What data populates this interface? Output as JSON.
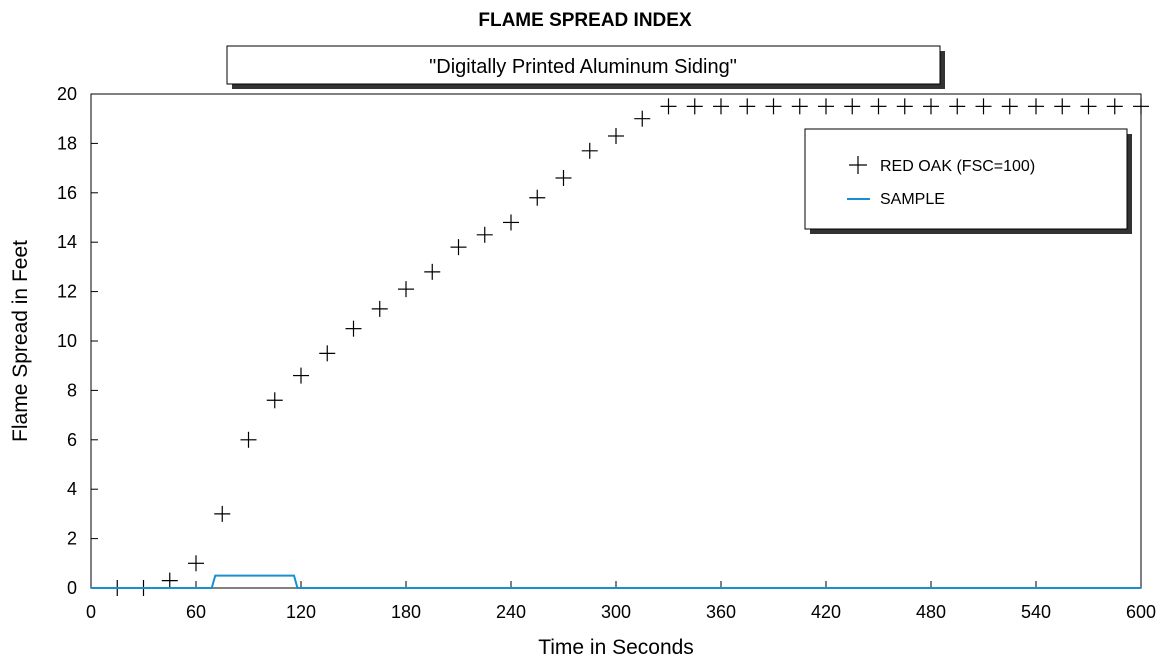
{
  "chart_data": {
    "type": "scatter",
    "title": "FLAME SPREAD INDEX",
    "subtitle": "\"Digitally Printed Aluminum Siding\"",
    "xlabel": "Time in Seconds",
    "ylabel": "Flame Spread in Feet",
    "xlim": [
      0,
      600
    ],
    "ylim": [
      0,
      20
    ],
    "xticks": [
      "0",
      "60",
      "120",
      "180",
      "240",
      "300",
      "360",
      "420",
      "480",
      "540",
      "600"
    ],
    "yticks": [
      "0",
      "2",
      "4",
      "6",
      "8",
      "10",
      "12",
      "14",
      "16",
      "18",
      "20"
    ],
    "grid": false,
    "legend_position": "top-right",
    "series": [
      {
        "name": "RED OAK (FSC=100)",
        "marker": "plus",
        "color": "#000000",
        "x": [
          15,
          30,
          45,
          60,
          75,
          90,
          105,
          120,
          135,
          150,
          165,
          180,
          195,
          210,
          225,
          240,
          255,
          270,
          285,
          300,
          315,
          330,
          345,
          360,
          375,
          390,
          405,
          420,
          435,
          450,
          465,
          480,
          495,
          510,
          525,
          540,
          555,
          570,
          585,
          600
        ],
        "y": [
          0,
          0,
          0.3,
          1,
          3,
          6,
          7.6,
          8.6,
          9.5,
          10.5,
          11.3,
          12.1,
          12.8,
          13.8,
          14.3,
          14.8,
          15.8,
          16.6,
          17.7,
          18.3,
          19,
          19.5,
          19.5,
          19.5,
          19.5,
          19.5,
          19.5,
          19.5,
          19.5,
          19.5,
          19.5,
          19.5,
          19.5,
          19.5,
          19.5,
          19.5,
          19.5,
          19.5,
          19.5,
          19.5
        ]
      },
      {
        "name": "SAMPLE",
        "marker": "line",
        "color": "#1a8fd0",
        "x": [
          0,
          69,
          71,
          116,
          118,
          600
        ],
        "y": [
          0,
          0,
          0.5,
          0.5,
          0,
          0
        ]
      }
    ]
  }
}
